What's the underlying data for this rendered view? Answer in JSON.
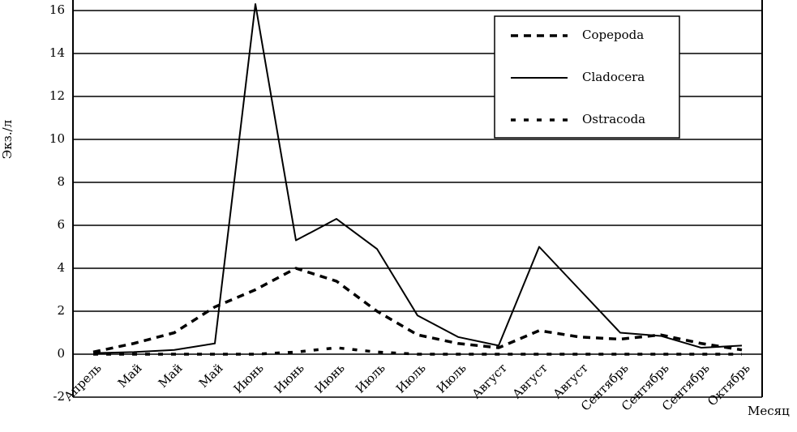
{
  "chart_data": {
    "type": "line",
    "y_label": "Экз./л",
    "x_label": "Месяц",
    "categories": [
      "Апрель",
      "Май",
      "Май",
      "Май",
      "Июнь",
      "Июнь",
      "Июнь",
      "Июль",
      "Июль",
      "Июль",
      "Август",
      "Август",
      "Август",
      "Сентябрь",
      "Сентябрь",
      "Сентябрь",
      "Октябрь"
    ],
    "series": [
      {
        "name": "Copepoda",
        "color": "#000000",
        "dash": "dashed",
        "values": [
          0.1,
          0.5,
          1.0,
          2.2,
          3.0,
          4.0,
          3.4,
          2.0,
          0.9,
          0.5,
          0.3,
          1.1,
          0.8,
          0.7,
          0.9,
          0.5,
          0.2
        ]
      },
      {
        "name": "Cladocera",
        "color": "#000000",
        "dash": "solid",
        "values": [
          0.05,
          0.1,
          0.2,
          0.5,
          16.3,
          5.3,
          6.3,
          4.9,
          1.8,
          0.8,
          0.4,
          5.0,
          3.0,
          1.0,
          0.85,
          0.3,
          0.4
        ]
      },
      {
        "name": "Ostracoda",
        "color": "#000000",
        "dash": "dotted",
        "values": [
          0,
          0,
          0,
          0,
          0,
          0.1,
          0.3,
          0.1,
          0,
          0,
          0,
          0,
          0,
          0,
          0,
          0,
          0
        ]
      }
    ],
    "ylim": [
      -2,
      16
    ],
    "yticks": [
      -2,
      0,
      2,
      4,
      6,
      8,
      10,
      12,
      14,
      16
    ],
    "grid": true
  }
}
